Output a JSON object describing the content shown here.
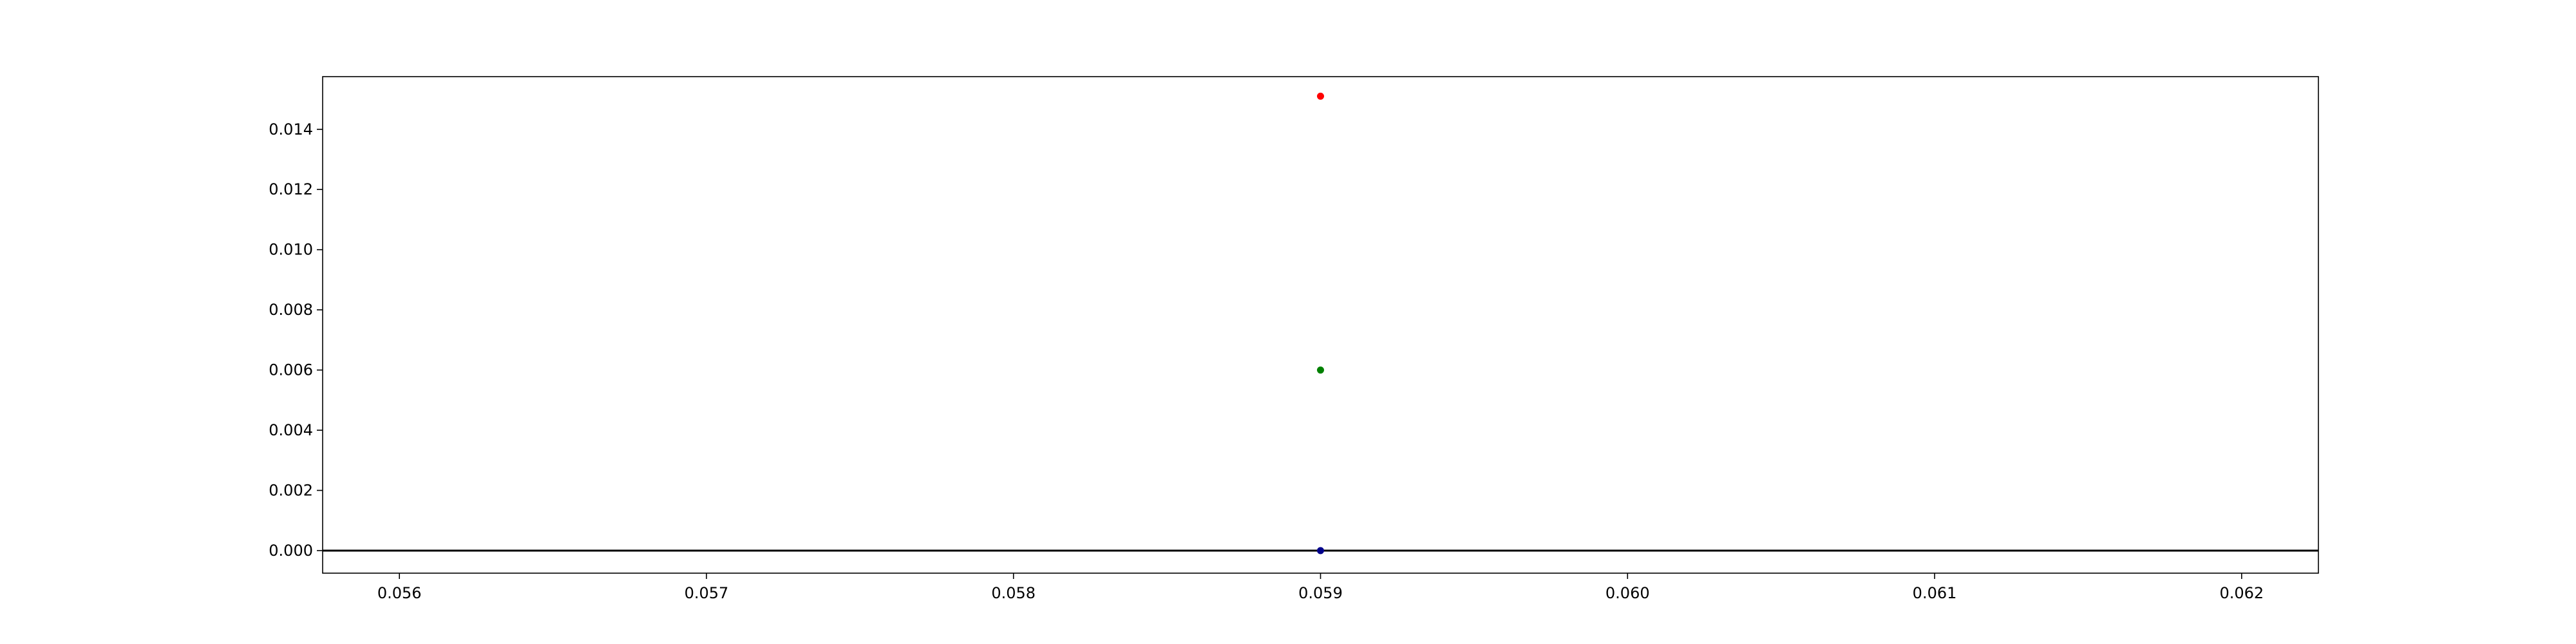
{
  "chart_data": {
    "type": "scatter",
    "title": "",
    "xlabel": "",
    "ylabel": "",
    "xlim": [
      0.05575,
      0.06225
    ],
    "ylim": [
      -0.00075,
      0.01575
    ],
    "xticks": [
      0.056,
      0.057,
      0.058,
      0.059,
      0.06,
      0.061,
      0.062
    ],
    "xtick_labels": [
      "0.056",
      "0.057",
      "0.058",
      "0.059",
      "0.060",
      "0.061",
      "0.062"
    ],
    "yticks": [
      0.0,
      0.002,
      0.004,
      0.006,
      0.008,
      0.01,
      0.012,
      0.014
    ],
    "ytick_labels": [
      "0.000",
      "0.002",
      "0.004",
      "0.006",
      "0.008",
      "0.010",
      "0.012",
      "0.014"
    ],
    "grid": false,
    "legend": "none",
    "hline": {
      "y": 0.0,
      "color": "#000000"
    },
    "series": [
      {
        "color": "#ff0000",
        "points": [
          {
            "x": 0.059,
            "y": 0.0151
          }
        ]
      },
      {
        "color": "#008000",
        "points": [
          {
            "x": 0.059,
            "y": 0.006
          }
        ]
      },
      {
        "color": "#00008b",
        "points": [
          {
            "x": 0.059,
            "y": 0.0
          }
        ]
      }
    ]
  }
}
